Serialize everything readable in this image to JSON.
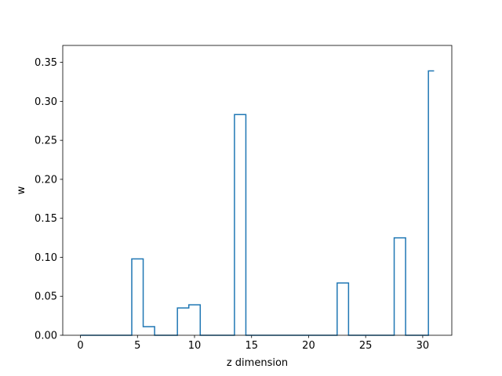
{
  "chart_data": {
    "type": "line",
    "drawstyle": "steps-mid",
    "xlabel": "z dimension",
    "ylabel": "w",
    "xlim": [
      -1.55,
      32.55
    ],
    "ylim": [
      0,
      0.3717
    ],
    "xticks": [
      0,
      5,
      10,
      15,
      20,
      25,
      30
    ],
    "xtick_labels": [
      "0",
      "5",
      "10",
      "15",
      "20",
      "25",
      "30"
    ],
    "yticks": [
      0.0,
      0.05,
      0.1,
      0.15,
      0.2,
      0.25,
      0.3,
      0.35
    ],
    "ytick_labels": [
      "0.00",
      "0.05",
      "0.10",
      "0.15",
      "0.20",
      "0.25",
      "0.30",
      "0.35"
    ],
    "grid": false,
    "line_color": "#1f77b4",
    "series": [
      {
        "x": [
          0,
          1,
          2,
          3,
          4,
          5,
          6,
          7,
          8,
          9,
          10,
          11,
          12,
          13,
          14,
          15,
          16,
          17,
          18,
          19,
          20,
          21,
          22,
          23,
          24,
          25,
          26,
          27,
          28,
          29,
          30,
          31
        ],
        "y": [
          0,
          0,
          0,
          0,
          0,
          0.098,
          0.011,
          0,
          0,
          0.035,
          0.039,
          0,
          0,
          0,
          0.283,
          0,
          0,
          0,
          0,
          0,
          0,
          0,
          0,
          0.067,
          0,
          0,
          0,
          0,
          0.125,
          0,
          0,
          0.339
        ]
      }
    ]
  }
}
